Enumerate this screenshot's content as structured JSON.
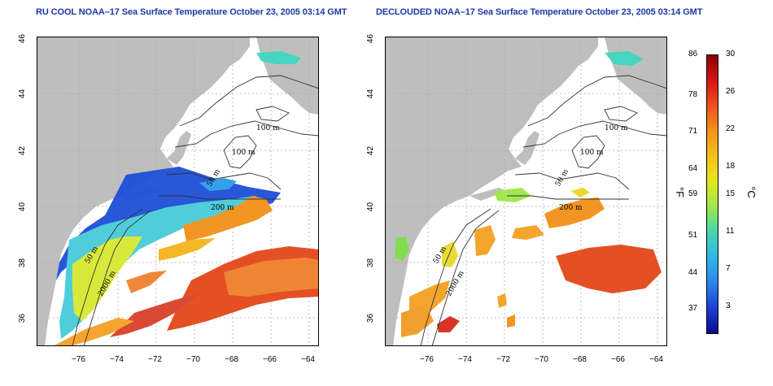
{
  "titles": {
    "left": "RU COOL NOAA–17 Sea Surface Temperature October 23, 2005 03:14 GMT",
    "right": "DECLOUDED NOAA–17 Sea Surface Temperature October 23, 2005 03:14 GMT"
  },
  "axes": {
    "x_ticks": [
      "−76",
      "−74",
      "−72",
      "−70",
      "−68",
      "−66",
      "−64"
    ],
    "y_ticks": [
      "46",
      "44",
      "42",
      "40",
      "38",
      "36"
    ]
  },
  "isobaths": {
    "left": [
      "100 m",
      "100 m",
      "50 m",
      "200 m",
      "50 m",
      "2000 m"
    ],
    "right": [
      "100 m",
      "100 m",
      "50 m",
      "200 m",
      "50 m",
      "2000 m"
    ]
  },
  "colorbar": {
    "fahrenheit_ticks": [
      "86",
      "78",
      "71",
      "64",
      "59",
      "51",
      "44",
      "37"
    ],
    "celsius_ticks": [
      "30",
      "26",
      "22",
      "18",
      "15",
      "11",
      "7",
      "3"
    ],
    "fahrenheit_unit": "°F",
    "celsius_unit": "°C",
    "gradient": [
      "#8b0000",
      "#d81414",
      "#f05020",
      "#f39416",
      "#f5c11a",
      "#e3e81e",
      "#9fe64a",
      "#45d6b0",
      "#2fb8e8",
      "#2c86ea",
      "#1c3fd6",
      "#0a0a8c"
    ]
  },
  "colors": {
    "land": "#bebebe",
    "ocean": "#ffffff",
    "warm": "#f07a18",
    "hot": "#e03418",
    "cool": "#1d4fd8",
    "teal": "#3fd6c0",
    "yellow": "#d8e832"
  }
}
